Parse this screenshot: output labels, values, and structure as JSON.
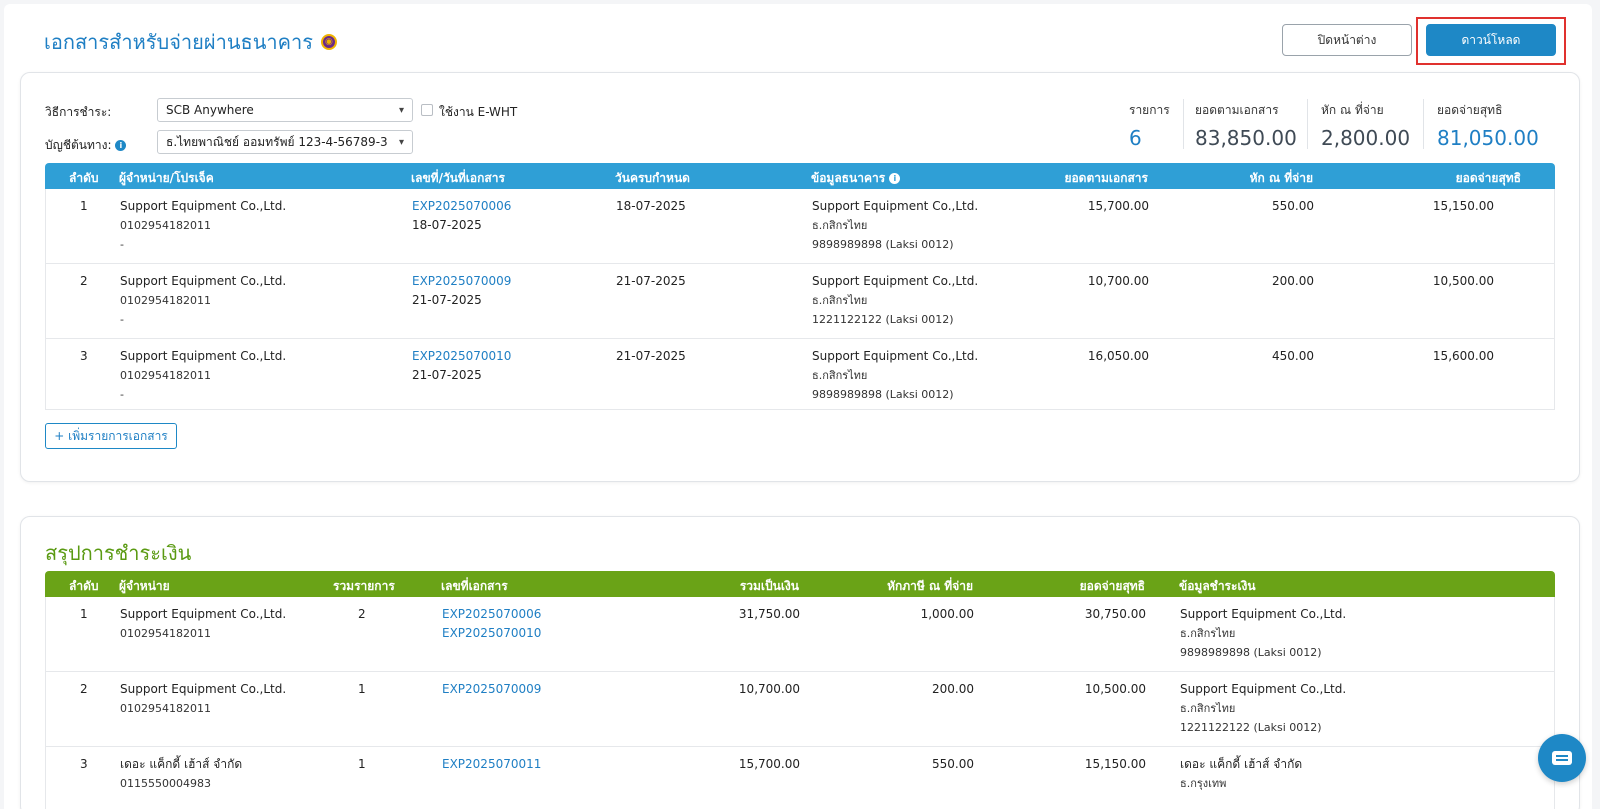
{
  "header": {
    "title": "เอกสารสำหรับจ่ายผ่านธนาคาร",
    "close_label": "ปิดหน้าต่าง",
    "download_label": "ดาวน์โหลด"
  },
  "form": {
    "payment_method_label": "วิธีการชำระ:",
    "payment_method_value": "SCB Anywhere",
    "ewht_label": "ใช้งาน E-WHT",
    "source_account_label": "บัญชีต้นทาง:",
    "source_account_value": "ธ.ไทยพาณิชย์ ออมทรัพย์ 123-4-56789-3"
  },
  "stats": [
    {
      "label": "รายการ",
      "value": "6"
    },
    {
      "label": "ยอดตามเอกสาร",
      "value": "83,850.00"
    },
    {
      "label": "หัก ณ ที่จ่าย",
      "value": "2,800.00"
    },
    {
      "label": "ยอดจ่ายสุทธิ",
      "value": "81,050.00"
    }
  ],
  "docs_table": {
    "headers": {
      "no": "ลำดับ",
      "vendor": "ผู้จำหน่าย/โปรเจ็ค",
      "doc": "เลขที่/วันที่เอกสาร",
      "due": "วันครบกำหนด",
      "bank": "ข้อมูลธนาคาร",
      "amount": "ยอดตามเอกสาร",
      "wht": "หัก ณ ที่จ่าย",
      "net": "ยอดจ่ายสุทธิ"
    },
    "rows": [
      {
        "no": "1",
        "vendor": "Support Equipment Co.,Ltd.",
        "tax_id": "0102954182011",
        "project": "-",
        "doc_no": "EXP2025070006",
        "doc_date": "18-07-2025",
        "due": "18-07-2025",
        "bank_name": "Support Equipment Co.,Ltd.",
        "bank": "ธ.กสิกรไทย",
        "account": "9898989898 (Laksi 0012)",
        "amount": "15,700.00",
        "wht": "550.00",
        "net": "15,150.00"
      },
      {
        "no": "2",
        "vendor": "Support Equipment Co.,Ltd.",
        "tax_id": "0102954182011",
        "project": "-",
        "doc_no": "EXP2025070009",
        "doc_date": "21-07-2025",
        "due": "21-07-2025",
        "bank_name": "Support Equipment Co.,Ltd.",
        "bank": "ธ.กสิกรไทย",
        "account": "1221122122 (Laksi 0012)",
        "amount": "10,700.00",
        "wht": "200.00",
        "net": "10,500.00"
      },
      {
        "no": "3",
        "vendor": "Support Equipment Co.,Ltd.",
        "tax_id": "0102954182011",
        "project": "-",
        "doc_no": "EXP2025070010",
        "doc_date": "21-07-2025",
        "due": "21-07-2025",
        "bank_name": "Support Equipment Co.,Ltd.",
        "bank": "ธ.กสิกรไทย",
        "account": "9898989898 (Laksi 0012)",
        "amount": "16,050.00",
        "wht": "450.00",
        "net": "15,600.00"
      }
    ],
    "add_label": "+ เพิ่มรายการเอกสาร"
  },
  "summary": {
    "title": "สรุปการชำระเงิน",
    "headers": {
      "no": "ลำดับ",
      "vendor": "ผู้จำหน่าย",
      "count": "รวมรายการ",
      "docs": "เลขที่เอกสาร",
      "total": "รวมเป็นเงิน",
      "wht": "หักภาษี ณ ที่จ่าย",
      "net": "ยอดจ่ายสุทธิ",
      "payment": "ข้อมูลชำระเงิน"
    },
    "rows": [
      {
        "no": "1",
        "vendor": "Support Equipment Co.,Ltd.",
        "tax_id": "0102954182011",
        "count": "2",
        "doc1": "EXP2025070006",
        "doc2": "EXP2025070010",
        "total": "31,750.00",
        "wht": "1,000.00",
        "net": "30,750.00",
        "pay_name": "Support Equipment Co.,Ltd.",
        "pay_bank": "ธ.กสิกรไทย",
        "pay_account": "9898989898 (Laksi 0012)"
      },
      {
        "no": "2",
        "vendor": "Support Equipment Co.,Ltd.",
        "tax_id": "0102954182011",
        "count": "1",
        "doc1": "EXP2025070009",
        "doc2": "",
        "total": "10,700.00",
        "wht": "200.00",
        "net": "10,500.00",
        "pay_name": "Support Equipment Co.,Ltd.",
        "pay_bank": "ธ.กสิกรไทย",
        "pay_account": "1221122122 (Laksi 0012)"
      },
      {
        "no": "3",
        "vendor": "เดอะ แค็กดี้ เฮ้าส์ จำกัด",
        "tax_id": "0115550004983",
        "count": "1",
        "doc1": "EXP2025070011",
        "doc2": "",
        "total": "15,700.00",
        "wht": "550.00",
        "net": "15,150.00",
        "pay_name": "เดอะ แค็กดี้ เฮ้าส์ จำกัด",
        "pay_bank": "ธ.กรุงเทพ",
        "pay_account": ""
      }
    ]
  },
  "colors": {
    "primary": "#1e88c6",
    "summary_green": "#6aa317",
    "highlight": "#e0312e"
  }
}
